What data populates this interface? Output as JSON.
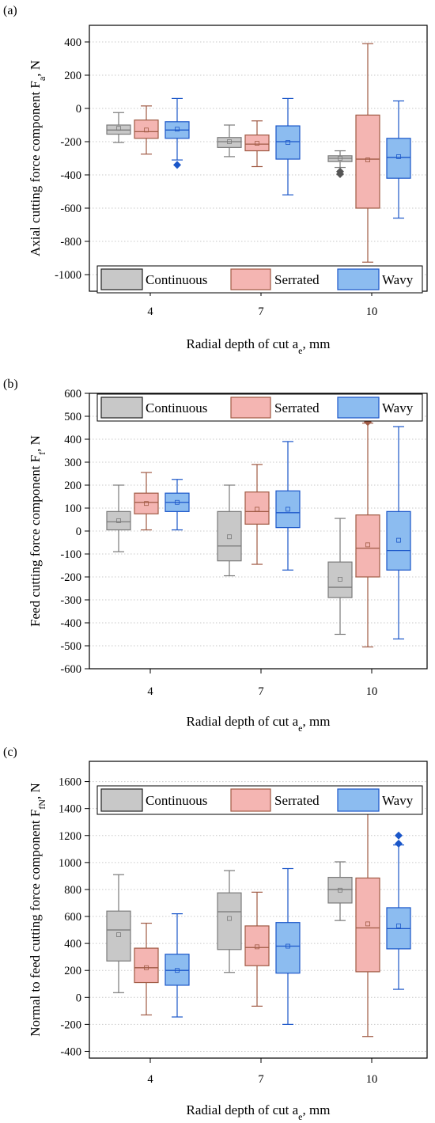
{
  "chart_data": [
    {
      "panel": "(a)",
      "type": "box",
      "title": "",
      "xlabel": "Radial depth of cut a",
      "xlabel_sub": "e",
      "xlabel_tail": ", mm",
      "ylabel": "Axial cutting force component F",
      "ylabel_sub": "a",
      "ylabel_tail": ", N",
      "categories": [
        "4",
        "7",
        "10"
      ],
      "ylim": [
        -1100,
        500
      ],
      "yticks": [
        400,
        200,
        0,
        -200,
        -400,
        -600,
        -800,
        -1000
      ],
      "grid": true,
      "legend_position": "bottom",
      "series": [
        {
          "name": "Continuous",
          "color": "#7a7a7a",
          "fill": "#c8c8c8",
          "boxes": [
            {
              "min": -205,
              "q1": -155,
              "median": -130,
              "q3": -100,
              "max": -25,
              "mean": -120,
              "outliers": []
            },
            {
              "min": -290,
              "q1": -235,
              "median": -200,
              "q3": -175,
              "max": -100,
              "mean": -200,
              "outliers": []
            },
            {
              "min": -355,
              "q1": -320,
              "median": -300,
              "q3": -285,
              "max": -255,
              "mean": -300,
              "outliers": [
                -380,
                -395
              ]
            }
          ]
        },
        {
          "name": "Serrated",
          "color": "#a05a44",
          "fill": "#f4b5b2",
          "boxes": [
            {
              "min": -275,
              "q1": -180,
              "median": -140,
              "q3": -70,
              "max": 15,
              "mean": -130,
              "outliers": []
            },
            {
              "min": -350,
              "q1": -255,
              "median": -215,
              "q3": -160,
              "max": -75,
              "mean": -210,
              "outliers": []
            },
            {
              "min": -925,
              "q1": -600,
              "median": -305,
              "q3": -40,
              "max": 390,
              "mean": -310,
              "outliers": []
            }
          ]
        },
        {
          "name": "Wavy",
          "color": "#1a56c9",
          "fill": "#8cbcf0",
          "boxes": [
            {
              "min": -310,
              "q1": -180,
              "median": -130,
              "q3": -80,
              "max": 60,
              "mean": -125,
              "outliers": [
                -340
              ]
            },
            {
              "min": -520,
              "q1": -305,
              "median": -200,
              "q3": -105,
              "max": 60,
              "mean": -205,
              "outliers": []
            },
            {
              "min": -660,
              "q1": -420,
              "median": -295,
              "q3": -180,
              "max": 45,
              "mean": -290,
              "outliers": []
            }
          ]
        }
      ]
    },
    {
      "panel": "(b)",
      "type": "box",
      "title": "",
      "xlabel": "Radial depth of cut a",
      "xlabel_sub": "e",
      "xlabel_tail": ", mm",
      "ylabel": "Feed cutting force component F",
      "ylabel_sub": "f",
      "ylabel_tail": ", N",
      "categories": [
        "4",
        "7",
        "10"
      ],
      "ylim": [
        -600,
        600
      ],
      "yticks": [
        600,
        500,
        400,
        300,
        200,
        100,
        0,
        -100,
        -200,
        -300,
        -400,
        -500,
        -600
      ],
      "grid": true,
      "legend_position": "top",
      "series": [
        {
          "name": "Continuous",
          "color": "#7a7a7a",
          "fill": "#c8c8c8",
          "boxes": [
            {
              "min": -90,
              "q1": 5,
              "median": 40,
              "q3": 85,
              "max": 200,
              "mean": 45,
              "outliers": []
            },
            {
              "min": -195,
              "q1": -130,
              "median": -65,
              "q3": 85,
              "max": 200,
              "mean": -25,
              "outliers": []
            },
            {
              "min": -450,
              "q1": -290,
              "median": -245,
              "q3": -135,
              "max": 55,
              "mean": -210,
              "outliers": []
            }
          ]
        },
        {
          "name": "Serrated",
          "color": "#a05a44",
          "fill": "#f4b5b2",
          "boxes": [
            {
              "min": 5,
              "q1": 75,
              "median": 125,
              "q3": 165,
              "max": 255,
              "mean": 120,
              "outliers": []
            },
            {
              "min": -145,
              "q1": 30,
              "median": 85,
              "q3": 170,
              "max": 290,
              "mean": 95,
              "outliers": []
            },
            {
              "min": -505,
              "q1": -200,
              "median": -75,
              "q3": 70,
              "max": 470,
              "mean": -60,
              "outliers": [
                475
              ]
            }
          ]
        },
        {
          "name": "Wavy",
          "color": "#1a56c9",
          "fill": "#8cbcf0",
          "boxes": [
            {
              "min": 5,
              "q1": 85,
              "median": 125,
              "q3": 165,
              "max": 225,
              "mean": 125,
              "outliers": []
            },
            {
              "min": -170,
              "q1": 15,
              "median": 80,
              "q3": 175,
              "max": 390,
              "mean": 95,
              "outliers": []
            },
            {
              "min": -470,
              "q1": -170,
              "median": -85,
              "q3": 85,
              "max": 455,
              "mean": -40,
              "outliers": []
            }
          ]
        }
      ]
    },
    {
      "panel": "(c)",
      "type": "box",
      "title": "",
      "xlabel": "Radial depth of cut a",
      "xlabel_sub": "e",
      "xlabel_tail": ", mm",
      "ylabel": "Normal to feed cutting force component F",
      "ylabel_sub": "fN",
      "ylabel_tail": ", N",
      "categories": [
        "4",
        "7",
        "10"
      ],
      "ylim": [
        -450,
        1750
      ],
      "yticks": [
        1600,
        1400,
        1200,
        1000,
        800,
        600,
        400,
        200,
        0,
        -200,
        -400
      ],
      "grid": true,
      "legend_position": "top",
      "series": [
        {
          "name": "Continuous",
          "color": "#7a7a7a",
          "fill": "#c8c8c8",
          "boxes": [
            {
              "min": 35,
              "q1": 270,
              "median": 500,
              "q3": 640,
              "max": 910,
              "mean": 465,
              "outliers": []
            },
            {
              "min": 185,
              "q1": 355,
              "median": 635,
              "q3": 775,
              "max": 940,
              "mean": 585,
              "outliers": []
            },
            {
              "min": 570,
              "q1": 700,
              "median": 800,
              "q3": 890,
              "max": 1005,
              "mean": 795,
              "outliers": []
            }
          ]
        },
        {
          "name": "Serrated",
          "color": "#a05a44",
          "fill": "#f4b5b2",
          "boxes": [
            {
              "min": -130,
              "q1": 110,
              "median": 220,
              "q3": 365,
              "max": 550,
              "mean": 220,
              "outliers": []
            },
            {
              "min": -65,
              "q1": 235,
              "median": 370,
              "q3": 530,
              "max": 780,
              "mean": 375,
              "outliers": []
            },
            {
              "min": -290,
              "q1": 190,
              "median": 515,
              "q3": 885,
              "max": 1470,
              "mean": 545,
              "outliers": []
            }
          ]
        },
        {
          "name": "Wavy",
          "color": "#1a56c9",
          "fill": "#8cbcf0",
          "boxes": [
            {
              "min": -145,
              "q1": 90,
              "median": 200,
              "q3": 320,
              "max": 620,
              "mean": 200,
              "outliers": []
            },
            {
              "min": -200,
              "q1": 180,
              "median": 380,
              "q3": 555,
              "max": 955,
              "mean": 380,
              "outliers": []
            },
            {
              "min": 60,
              "q1": 360,
              "median": 510,
              "q3": 665,
              "max": 1130,
              "mean": 530,
              "outliers": [
                1140,
                1200
              ]
            }
          ]
        }
      ]
    }
  ]
}
